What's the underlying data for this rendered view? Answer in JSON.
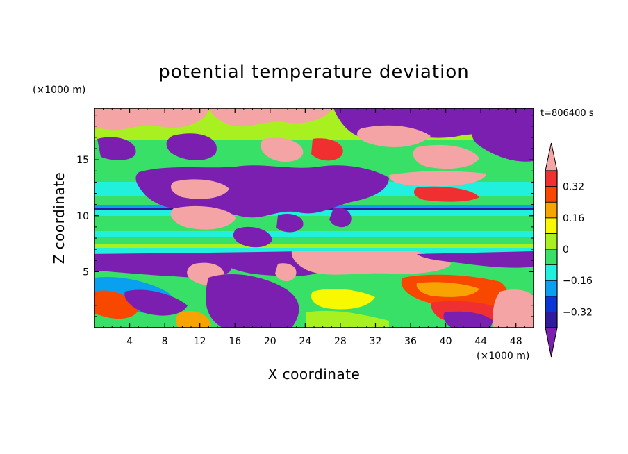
{
  "chart_data": {
    "type": "heatmap",
    "title": "potential temperature deviation",
    "xlabel": "X coordinate",
    "ylabel": "Z coordinate",
    "x_unit": "(×1000 m)",
    "y_unit": "(×1000 m)",
    "time_label": "t=806400 s",
    "xlim": [
      0,
      50
    ],
    "ylim": [
      0,
      19.6
    ],
    "x_ticks": [
      4,
      8,
      12,
      16,
      20,
      24,
      28,
      32,
      36,
      40,
      44,
      48
    ],
    "y_ticks": [
      5,
      10,
      15
    ],
    "colorbar": {
      "levels": [
        -0.4,
        -0.32,
        -0.24,
        -0.16,
        -0.08,
        0,
        0.08,
        0.16,
        0.24,
        0.32,
        0.4
      ],
      "labeled_levels": [
        0.32,
        0.16,
        0,
        -0.16,
        -0.32
      ],
      "labels": [
        "0.32",
        "0.16",
        "0",
        "−0.16",
        "−0.32"
      ],
      "colors": [
        "#7b1fb0",
        "#2e1b9e",
        "#0a36d6",
        "#0aa0f0",
        "#20f0dc",
        "#38e068",
        "#a8f020",
        "#f8f800",
        "#f8a400",
        "#f84800",
        "#f03030",
        "#f4a4a4"
      ]
    },
    "bands": [
      {
        "z": [
          17.5,
          19.6
        ],
        "dominant": [
          0.4,
          -0.4
        ],
        "note": "mixed"
      },
      {
        "z": [
          12.5,
          17.5
        ],
        "dominant": [
          -0.4,
          0.4,
          0
        ],
        "note": "mixed"
      },
      {
        "z": [
          11.0,
          12.5
        ],
        "dominant": [
          0,
          0.08
        ]
      },
      {
        "z": [
          10.6,
          11.0
        ],
        "dominant": [
          -0.24
        ]
      },
      {
        "z": [
          7.0,
          10.6
        ],
        "dominant": [
          0,
          -0.08,
          0.08
        ]
      },
      {
        "z": [
          5.5,
          7.0
        ],
        "dominant": [
          -0.4,
          0.4
        ]
      },
      {
        "z": [
          0,
          5.5
        ],
        "dominant": [
          0,
          0.16,
          0.32,
          -0.4
        ]
      }
    ]
  }
}
